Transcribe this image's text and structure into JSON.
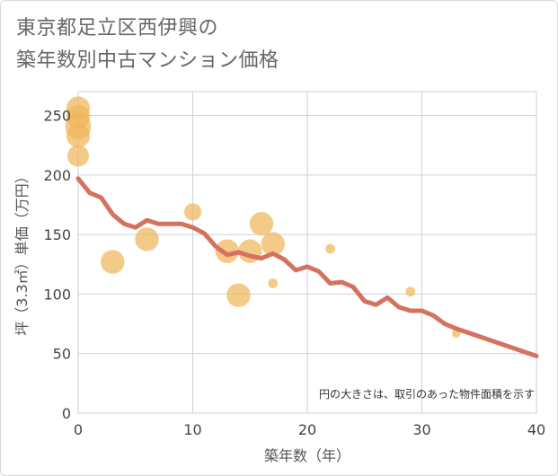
{
  "title_line1": "東京都足立区西伊興の",
  "title_line2": "築年数別中古マンション価格",
  "chart_data": {
    "type": "scatter+line",
    "xlabel": "築年数（年）",
    "ylabel": "坪（3.3㎡）単価（万円）",
    "xlim": [
      0,
      40
    ],
    "ylim": [
      0,
      270
    ],
    "xticks": [
      0,
      10,
      20,
      30,
      40
    ],
    "yticks": [
      0,
      50,
      100,
      150,
      200,
      250
    ],
    "note": "円の大きさは、取引のあった物件面積を示す",
    "colors": {
      "bubble": "#f0b65a",
      "line": "#d5725f",
      "grid": "#c8d2dc"
    },
    "scatter": [
      {
        "x": 0,
        "y": 256,
        "size": 2.2
      },
      {
        "x": 0,
        "y": 249,
        "size": 2.2
      },
      {
        "x": 0,
        "y": 241,
        "size": 2.4
      },
      {
        "x": 0,
        "y": 233,
        "size": 2.2
      },
      {
        "x": 0,
        "y": 216,
        "size": 2.0
      },
      {
        "x": 3,
        "y": 127,
        "size": 2.2
      },
      {
        "x": 6,
        "y": 146,
        "size": 2.2
      },
      {
        "x": 10,
        "y": 169,
        "size": 1.6
      },
      {
        "x": 13,
        "y": 136,
        "size": 2.2
      },
      {
        "x": 14,
        "y": 99,
        "size": 2.2
      },
      {
        "x": 15,
        "y": 136,
        "size": 2.2
      },
      {
        "x": 16,
        "y": 159,
        "size": 2.2
      },
      {
        "x": 17,
        "y": 142,
        "size": 2.2
      },
      {
        "x": 17,
        "y": 109,
        "size": 0.9
      },
      {
        "x": 22,
        "y": 138,
        "size": 0.9
      },
      {
        "x": 29,
        "y": 102,
        "size": 0.9
      },
      {
        "x": 33,
        "y": 67,
        "size": 0.8
      }
    ],
    "line": {
      "x": [
        0,
        1,
        2,
        3,
        4,
        5,
        6,
        7,
        8,
        9,
        10,
        11,
        12,
        13,
        14,
        15,
        16,
        17,
        18,
        19,
        20,
        21,
        22,
        23,
        24,
        25,
        26,
        27,
        28,
        29,
        30,
        31,
        32,
        33,
        40
      ],
      "y": [
        197,
        185,
        181,
        167,
        159,
        156,
        162,
        159,
        159,
        159,
        156,
        151,
        140,
        133,
        135,
        132,
        130,
        134,
        129,
        120,
        123,
        119,
        109,
        110,
        106,
        94,
        91,
        97,
        89,
        86,
        86,
        82,
        75,
        71,
        48
      ]
    }
  }
}
